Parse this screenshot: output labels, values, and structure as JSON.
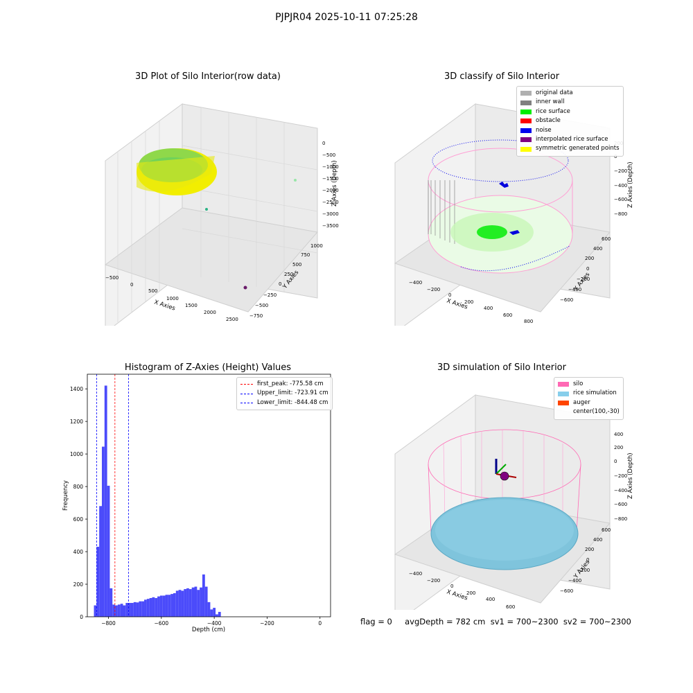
{
  "figure": {
    "suptitle": "PJPJR04 2025-10-11 07:25:28",
    "status_text": "flag = 0     avgDepth = 782 cm  sv1 = 700~2300  sv2 = 700~2300"
  },
  "panels": {
    "raw": {
      "title": "3D Plot of Silo Interior(row data)",
      "xlabel": "X Axies",
      "ylabel": "Y Axies",
      "zlabel": "Z Axies (Depth)",
      "xticks": [
        "−500",
        "0",
        "500",
        "1000",
        "1500",
        "2000",
        "2500"
      ],
      "yticks": [
        "−750",
        "−500",
        "−250",
        "0",
        "250",
        "500",
        "750",
        "1000"
      ],
      "zticks": [
        "0",
        "−500",
        "−1000",
        "−1500",
        "−2000",
        "−2500",
        "−3000",
        "−3500"
      ]
    },
    "classify": {
      "title": "3D classify of Silo Interior",
      "xlabel": "X Axies",
      "ylabel": "Y Axies",
      "zlabel": "Z Axies (Depth)",
      "xticks": [
        "−400",
        "−200",
        "0",
        "200",
        "400",
        "600",
        "800"
      ],
      "yticks": [
        "−600",
        "−400",
        "−200",
        "0",
        "200",
        "400",
        "600"
      ],
      "zticks": [
        "200",
        "0",
        "−200",
        "−400",
        "−600",
        "−800"
      ],
      "legend": [
        {
          "label": "original data",
          "color": "#b0b0b0"
        },
        {
          "label": "inner wall",
          "color": "#808080"
        },
        {
          "label": "rice surface",
          "color": "#00ee00"
        },
        {
          "label": "obstacle",
          "color": "#ff0000"
        },
        {
          "label": "noise",
          "color": "#0000ee"
        },
        {
          "label": "interpolated rice surface",
          "color": "#800080"
        },
        {
          "label": "symmetric generated points",
          "color": "#ffff00"
        }
      ]
    },
    "simulation": {
      "title": "3D simulation of Silo Interior",
      "xlabel": "X Axies",
      "ylabel": "Y Axies",
      "zlabel": "Z Axies (Depth)",
      "xticks": [
        "−400",
        "−200",
        "0",
        "200",
        "400",
        "600"
      ],
      "yticks": [
        "−600",
        "−400",
        "−200",
        "0",
        "200",
        "400",
        "600"
      ],
      "zticks": [
        "400",
        "200",
        "0",
        "−200",
        "−400",
        "−600",
        "−800"
      ],
      "legend": [
        {
          "label": "silo",
          "color": "#ff69b4"
        },
        {
          "label": "rice simulation",
          "color": "#87ceeb"
        },
        {
          "label": "auger",
          "color": "#ff4500"
        },
        {
          "label": "center(100,-30)",
          "color": ""
        }
      ]
    }
  },
  "chart_data": {
    "type": "bar",
    "title": "Histogram of Z-Axies (Height) Values",
    "xlabel": "Depth (cm)",
    "ylabel": "Frequency",
    "xlim": [
      -880,
      40
    ],
    "ylim": [
      0,
      1490
    ],
    "xticks": [
      -800,
      -600,
      -400,
      -200,
      0
    ],
    "xtick_labels": [
      "−800",
      "−600",
      "−400",
      "−200",
      "0"
    ],
    "yticks": [
      0,
      200,
      400,
      600,
      800,
      1000,
      1200,
      1400
    ],
    "bar_color": "#4b4bfa",
    "bins": [
      [
        -855,
        -845,
        70
      ],
      [
        -845,
        -835,
        430
      ],
      [
        -835,
        -825,
        680
      ],
      [
        -825,
        -815,
        1045
      ],
      [
        -815,
        -805,
        1420
      ],
      [
        -805,
        -795,
        805
      ],
      [
        -795,
        -785,
        175
      ],
      [
        -785,
        -775,
        75
      ],
      [
        -775,
        -765,
        70
      ],
      [
        -765,
        -755,
        75
      ],
      [
        -755,
        -745,
        80
      ],
      [
        -745,
        -735,
        70
      ],
      [
        -735,
        -725,
        85
      ],
      [
        -725,
        -715,
        85
      ],
      [
        -715,
        -705,
        85
      ],
      [
        -705,
        -695,
        90
      ],
      [
        -695,
        -685,
        88
      ],
      [
        -685,
        -675,
        95
      ],
      [
        -675,
        -665,
        95
      ],
      [
        -665,
        -655,
        105
      ],
      [
        -655,
        -645,
        110
      ],
      [
        -645,
        -635,
        115
      ],
      [
        -635,
        -625,
        120
      ],
      [
        -625,
        -615,
        115
      ],
      [
        -615,
        -605,
        125
      ],
      [
        -605,
        -595,
        130
      ],
      [
        -595,
        -585,
        130
      ],
      [
        -585,
        -575,
        135
      ],
      [
        -575,
        -565,
        135
      ],
      [
        -565,
        -555,
        140
      ],
      [
        -555,
        -545,
        145
      ],
      [
        -545,
        -535,
        160
      ],
      [
        -535,
        -525,
        165
      ],
      [
        -525,
        -515,
        160
      ],
      [
        -515,
        -505,
        170
      ],
      [
        -505,
        -495,
        175
      ],
      [
        -495,
        -485,
        170
      ],
      [
        -485,
        -475,
        180
      ],
      [
        -475,
        -465,
        185
      ],
      [
        -465,
        -455,
        165
      ],
      [
        -455,
        -445,
        180
      ],
      [
        -445,
        -435,
        260
      ],
      [
        -435,
        -425,
        185
      ],
      [
        -425,
        -415,
        90
      ],
      [
        -415,
        -405,
        45
      ],
      [
        -405,
        -395,
        55
      ],
      [
        -395,
        -385,
        15
      ],
      [
        -385,
        -375,
        30
      ]
    ],
    "reference_lines": [
      {
        "label": "first_peak: -775.58 cm",
        "x": -775.58,
        "color": "#ff0000"
      },
      {
        "label": "Upper_limit: -723.91 cm",
        "x": -723.91,
        "color": "#0000ff"
      },
      {
        "label": "Lower_limit: -844.48 cm",
        "x": -844.48,
        "color": "#0000ff"
      }
    ],
    "legend_position": "top-right"
  }
}
